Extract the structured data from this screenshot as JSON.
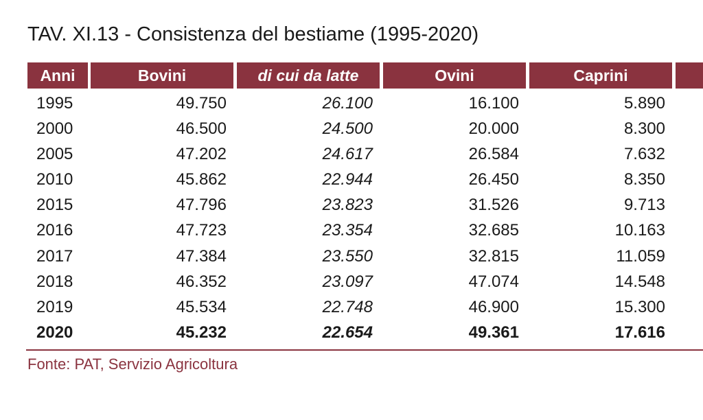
{
  "title": "TAV. XI.13 -  Consistenza del bestiame (1995-2020)",
  "columns": {
    "anni": "Anni",
    "bovini": "Bovini",
    "di_cui_da_latte": "di cui da latte",
    "ovini": "Ovini",
    "caprini": "Caprini"
  },
  "rows": [
    {
      "anno": "1995",
      "bovini": "49.750",
      "da_latte": "26.100",
      "ovini": "16.100",
      "caprini": "5.890"
    },
    {
      "anno": "2000",
      "bovini": "46.500",
      "da_latte": "24.500",
      "ovini": "20.000",
      "caprini": "8.300"
    },
    {
      "anno": "2005",
      "bovini": "47.202",
      "da_latte": "24.617",
      "ovini": "26.584",
      "caprini": "7.632"
    },
    {
      "anno": "2010",
      "bovini": "45.862",
      "da_latte": "22.944",
      "ovini": "26.450",
      "caprini": "8.350"
    },
    {
      "anno": "2015",
      "bovini": "47.796",
      "da_latte": "23.823",
      "ovini": "31.526",
      "caprini": "9.713"
    },
    {
      "anno": "2016",
      "bovini": "47.723",
      "da_latte": "23.354",
      "ovini": "32.685",
      "caprini": "10.163"
    },
    {
      "anno": "2017",
      "bovini": "47.384",
      "da_latte": "23.550",
      "ovini": "32.815",
      "caprini": "11.059"
    },
    {
      "anno": "2018",
      "bovini": "46.352",
      "da_latte": "23.097",
      "ovini": "47.074",
      "caprini": "14.548"
    },
    {
      "anno": "2019",
      "bovini": "45.534",
      "da_latte": "22.748",
      "ovini": "46.900",
      "caprini": "15.300"
    },
    {
      "anno": "2020",
      "bovini": "45.232",
      "da_latte": "22.654",
      "ovini": "49.361",
      "caprini": "17.616"
    }
  ],
  "source": "Fonte: PAT, Servizio Agricoltura",
  "colors": {
    "header_bg": "#8a333f",
    "header_text": "#ffffff",
    "source_text": "#8a333f"
  }
}
